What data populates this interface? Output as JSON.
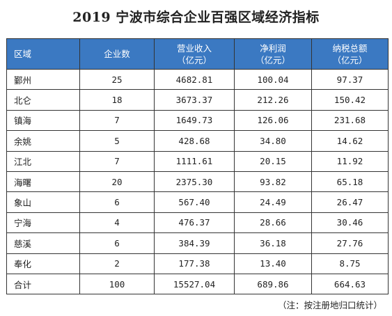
{
  "title": "2019 宁波市综合企业百强区域经济指标",
  "table": {
    "headers": {
      "region": "区域",
      "count": "企业数",
      "revenue_line1": "营业收入",
      "revenue_line2": "（亿元）",
      "profit_line1": "净利润",
      "profit_line2": "（亿元）",
      "tax_line1": "纳税总额",
      "tax_line2": "（亿元）"
    },
    "rows": [
      {
        "region": "鄞州",
        "count": "25",
        "revenue": "4682.81",
        "profit": "100.04",
        "tax": "97.37"
      },
      {
        "region": "北仑",
        "count": "18",
        "revenue": "3673.37",
        "profit": "212.26",
        "tax": "150.42"
      },
      {
        "region": "镇海",
        "count": "7",
        "revenue": "1649.73",
        "profit": "126.06",
        "tax": "231.68"
      },
      {
        "region": "余姚",
        "count": "5",
        "revenue": "428.68",
        "profit": "34.80",
        "tax": "14.62"
      },
      {
        "region": "江北",
        "count": "7",
        "revenue": "1111.61",
        "profit": "20.15",
        "tax": "11.92"
      },
      {
        "region": "海曙",
        "count": "20",
        "revenue": "2375.30",
        "profit": "93.82",
        "tax": "65.18"
      },
      {
        "region": "象山",
        "count": "6",
        "revenue": "567.40",
        "profit": "24.49",
        "tax": "26.47"
      },
      {
        "region": "宁海",
        "count": "4",
        "revenue": "476.37",
        "profit": "28.66",
        "tax": "30.46"
      },
      {
        "region": "慈溪",
        "count": "6",
        "revenue": "384.39",
        "profit": "36.18",
        "tax": "27.76"
      },
      {
        "region": "奉化",
        "count": "2",
        "revenue": "177.38",
        "profit": "13.40",
        "tax": "8.75"
      },
      {
        "region": "合计",
        "count": "100",
        "revenue": "15527.04",
        "profit": "689.86",
        "tax": "664.63"
      }
    ]
  },
  "note": "（注：按注册地归口统计）",
  "colors": {
    "header_bg": "#3b79c2",
    "header_text": "#ffffff",
    "border": "#333333"
  }
}
